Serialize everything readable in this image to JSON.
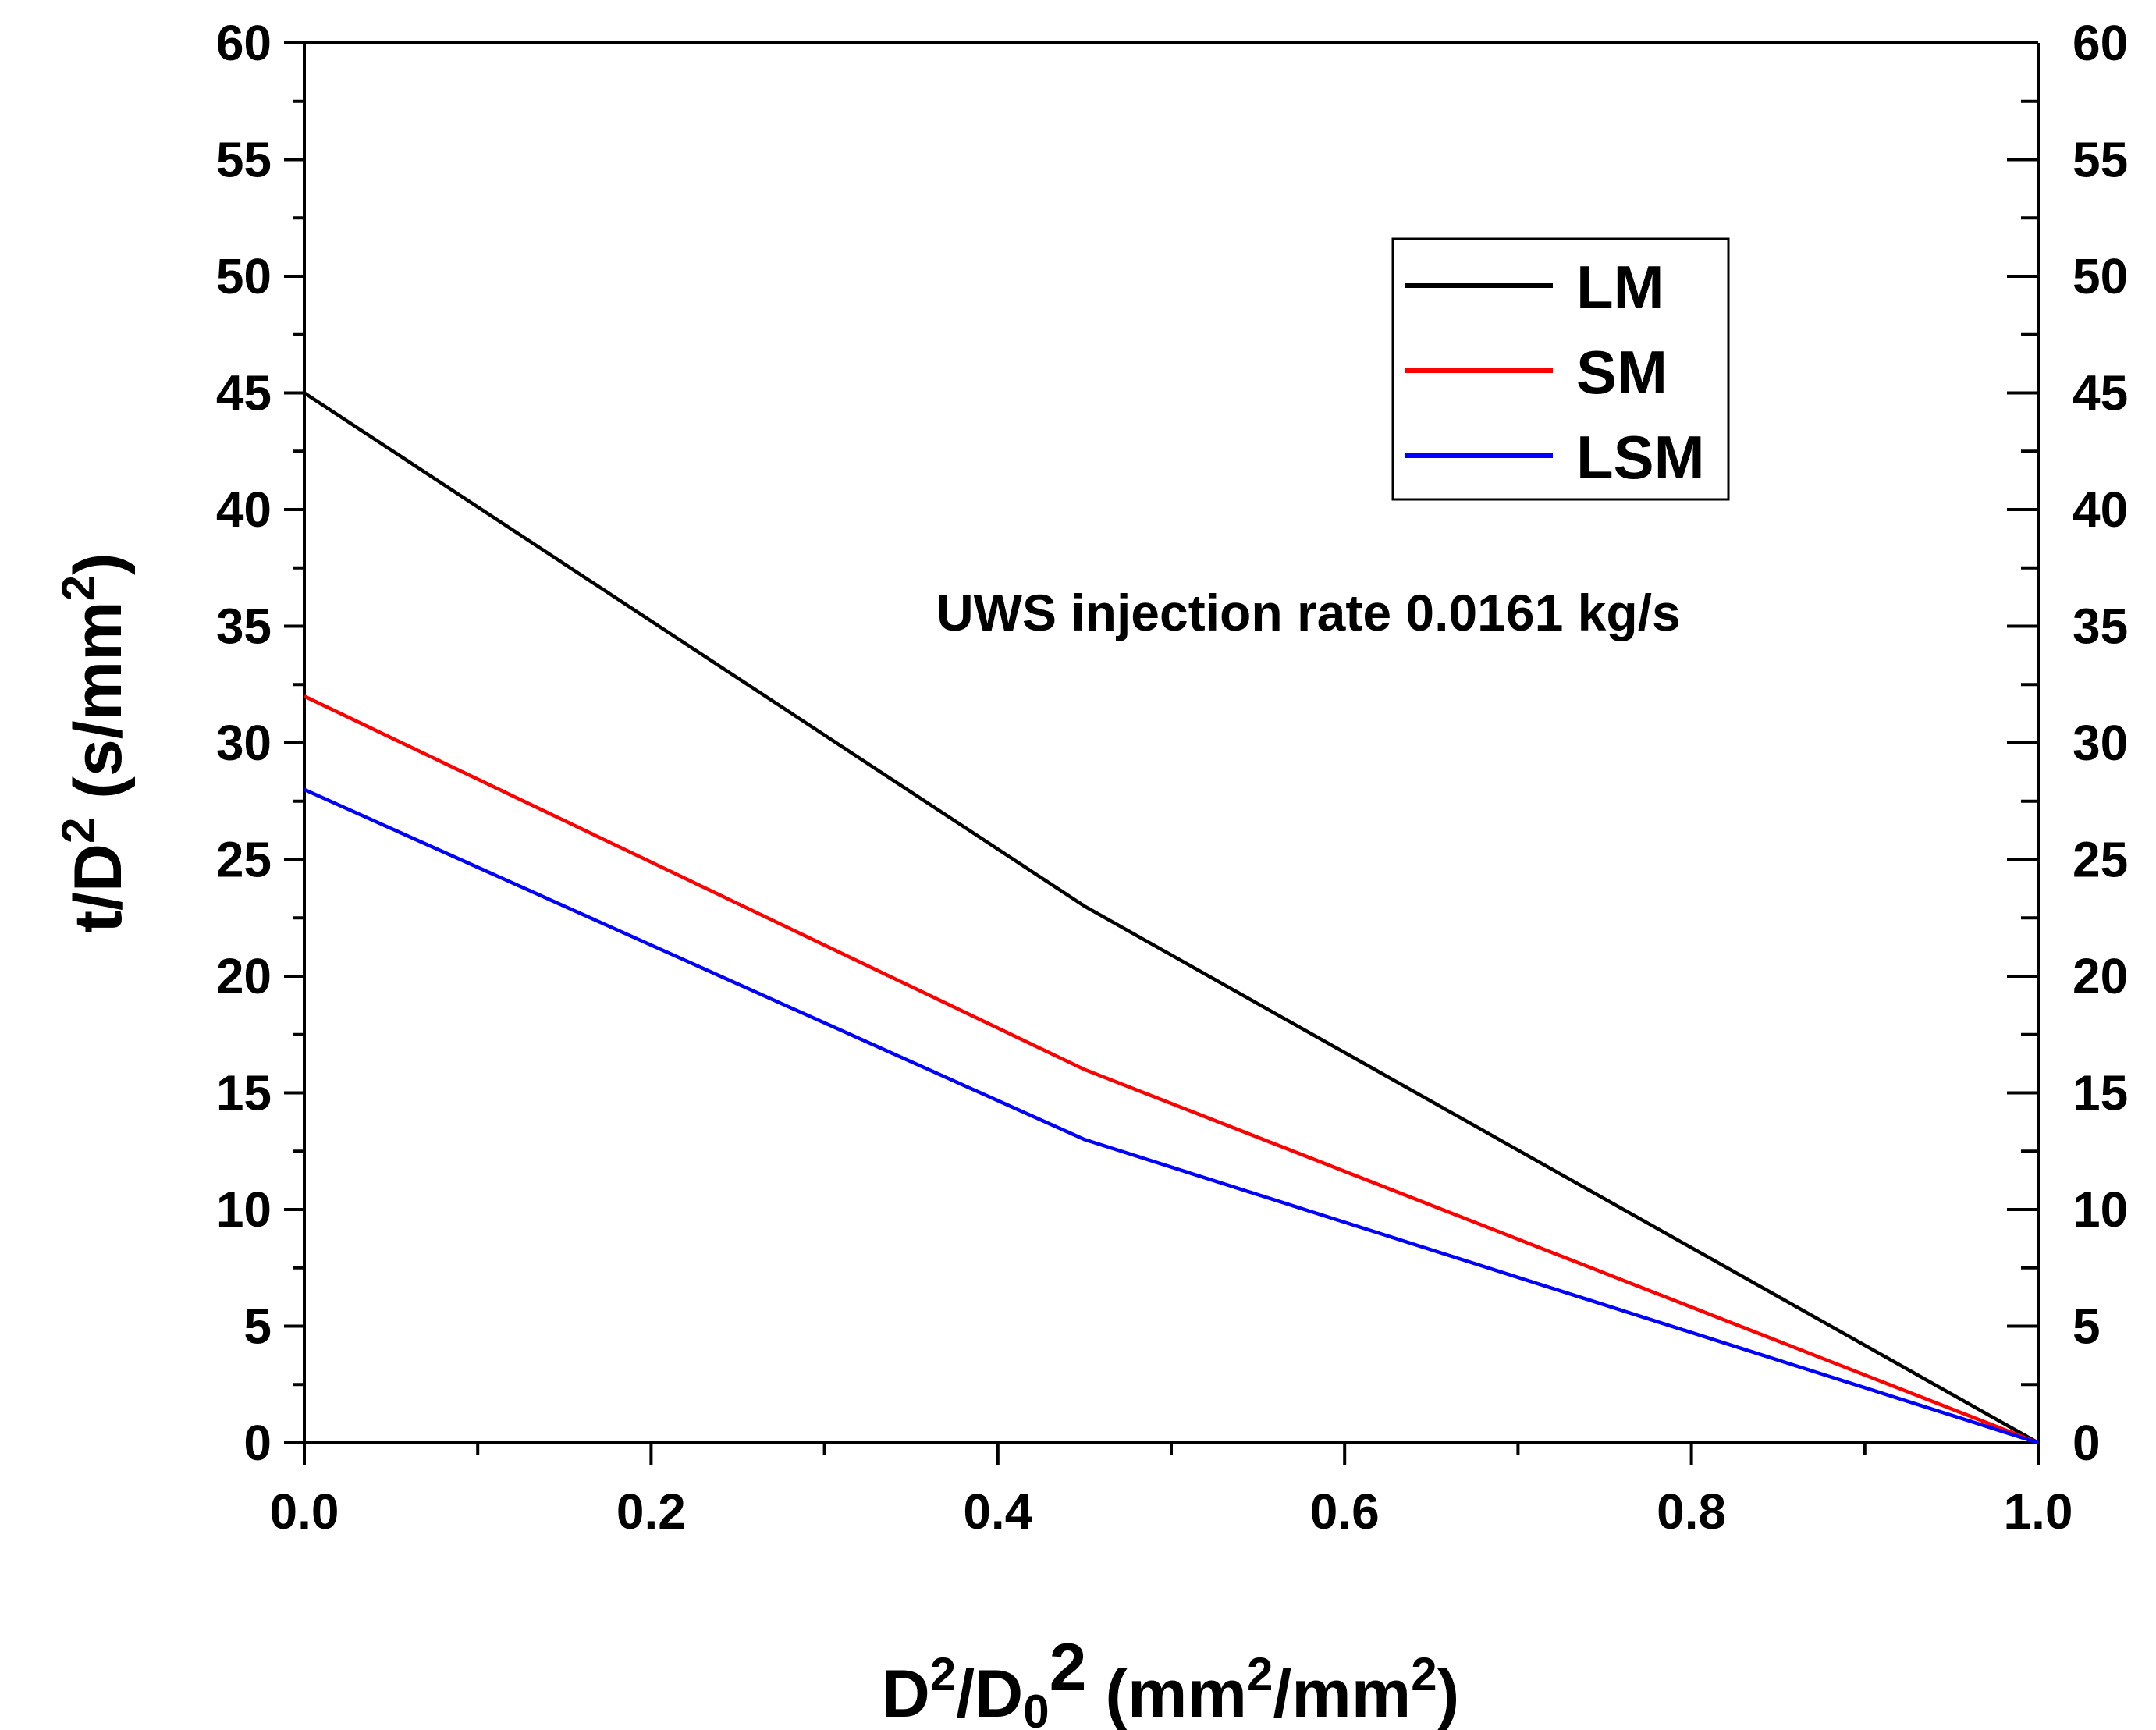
{
  "chart_data": {
    "type": "line",
    "title": "",
    "xlabel": {
      "main": "D",
      "sup1": "2",
      "slash": "/D",
      "sub": "0",
      "sup2": "2",
      "unit_open": " (mm",
      "unit_sup1": "2",
      "unit_mid": "/mm",
      "unit_sup2": "2",
      "unit_close": ")"
    },
    "ylabel": {
      "main": "t/D",
      "sup1": "2",
      "unit_open": " (s/mm",
      "unit_sup": "2",
      "unit_close": ")"
    },
    "xlim": [
      0.0,
      1.0
    ],
    "ylim": [
      0,
      60
    ],
    "xticks": [
      0.0,
      0.2,
      0.4,
      0.6,
      0.8,
      1.0
    ],
    "xtick_labels": [
      "0.0",
      "0.2",
      "0.4",
      "0.6",
      "0.8",
      "1.0"
    ],
    "yticks": [
      0,
      5,
      10,
      15,
      20,
      25,
      30,
      35,
      40,
      45,
      50,
      55,
      60
    ],
    "ytick_labels": [
      "0",
      "5",
      "10",
      "15",
      "20",
      "25",
      "30",
      "35",
      "40",
      "45",
      "50",
      "55",
      "60"
    ],
    "right_yticks": [
      0,
      5,
      10,
      15,
      20,
      25,
      30,
      35,
      40,
      45,
      50,
      55,
      60
    ],
    "right_ytick_labels": [
      "0",
      "5",
      "10",
      "15",
      "20",
      "25",
      "30",
      "35",
      "40",
      "45",
      "50",
      "55",
      "60"
    ],
    "right_ylim": [
      0,
      60
    ],
    "grid": false,
    "legend_position": "top-right",
    "annotation": "UWS injection rate 0.0161 kg/s",
    "series": [
      {
        "name": "LM",
        "color": "#000000",
        "x": [
          0.0,
          0.45,
          1.0
        ],
        "y": [
          45,
          23,
          0
        ]
      },
      {
        "name": "SM",
        "color": "#ff0000",
        "x": [
          0.0,
          0.45,
          1.0
        ],
        "y": [
          32,
          16,
          0
        ]
      },
      {
        "name": "LSM",
        "color": "#0000ff",
        "x": [
          0.0,
          0.45,
          1.0
        ],
        "y": [
          28,
          13,
          0
        ]
      }
    ]
  }
}
